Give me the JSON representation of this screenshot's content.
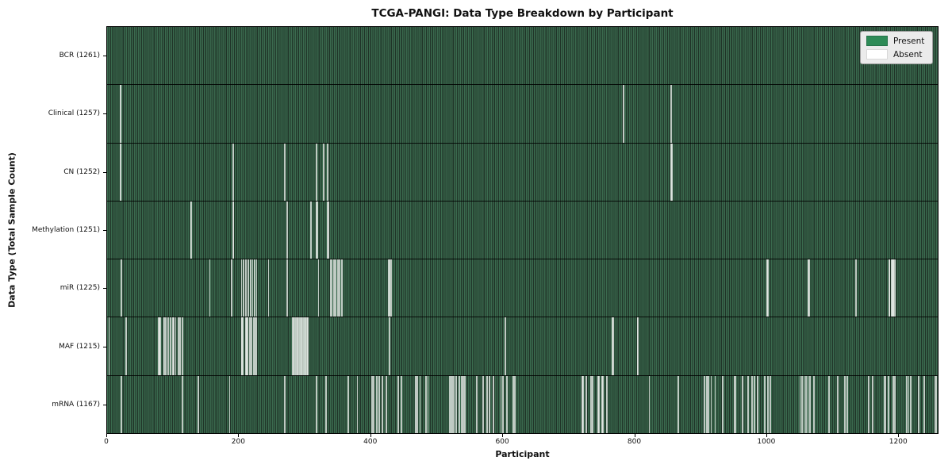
{
  "figure": {
    "title": "TCGA-PANGI: Data Type Breakdown by Participant",
    "xlabel": "Participant",
    "ylabel": "Data Type (Total Sample Count)"
  },
  "legend": {
    "items": [
      {
        "label": "Present",
        "color": "#2e8b57",
        "border": "#26734a"
      },
      {
        "label": "Absent",
        "color": "#ffffff",
        "border": "#d8d8d8"
      }
    ]
  },
  "chart_data": {
    "type": "heatmap",
    "title": "TCGA-PANGI: Data Type Breakdown by Participant",
    "xlabel": "Participant",
    "ylabel": "Data Type (Total Sample Count)",
    "x_ticks": [
      0,
      200,
      400,
      600,
      800,
      1000,
      1200
    ],
    "x_range": [
      0,
      1261
    ],
    "n_participants": 1261,
    "present_color": "#2e8b57",
    "absent_color": "#ffffff",
    "legend_position": "upper right",
    "grid": false,
    "rows": [
      {
        "label": "BCR (1261)",
        "data_type": "BCR",
        "sample_count": 1261,
        "absent_participants": []
      },
      {
        "label": "Clinical (1257)",
        "data_type": "Clinical",
        "sample_count": 1257,
        "absent_participants": [
          19,
          20,
          783,
          855
        ]
      },
      {
        "label": "CN (1252)",
        "data_type": "CN",
        "sample_count": 1252,
        "absent_participants": [
          19,
          20,
          190,
          269,
          317,
          328,
          334,
          855,
          856
        ]
      },
      {
        "label": "Methylation (1251)",
        "data_type": "Methylation",
        "sample_count": 1251,
        "absent_participants": [
          126,
          127,
          190,
          191,
          272,
          308,
          317,
          318,
          334,
          335
        ]
      },
      {
        "label": "miR (1225)",
        "data_type": "miR",
        "sample_count": 1225,
        "absent_participants": [
          21,
          155,
          188,
          203,
          206,
          210,
          213,
          217,
          220,
          223,
          226,
          244,
          272,
          320,
          338,
          340,
          343,
          346,
          349,
          352,
          355,
          426,
          428,
          430,
          1001,
          1002,
          1064,
          1065,
          1136,
          1186,
          1187,
          1190,
          1191,
          1192,
          1193,
          1195
        ]
      },
      {
        "label": "MAF (1215)",
        "data_type": "MAF",
        "sample_count": 1215,
        "absent_participants": [
          2,
          28,
          77,
          78,
          80,
          85,
          86,
          88,
          92,
          95,
          99,
          100,
          103,
          107,
          110,
          113,
          203,
          204,
          205,
          210,
          211,
          212,
          216,
          218,
          222,
          224,
          226,
          281,
          282,
          284,
          287,
          288,
          290,
          293,
          294,
          296,
          299,
          300,
          302,
          304,
          428,
          604,
          766,
          767,
          804,
          805
        ]
      },
      {
        "label": "mRNA (1167)",
        "data_type": "mRNA",
        "sample_count": 1167,
        "absent_participants": [
          21,
          113,
          137,
          185,
          269,
          317,
          331,
          365,
          379,
          401,
          404,
          408,
          412,
          417,
          423,
          441,
          446,
          467,
          470,
          474,
          483,
          486,
          519,
          521,
          523,
          525,
          529,
          534,
          537,
          540,
          542,
          560,
          570,
          576,
          579,
          585,
          597,
          600,
          606,
          616,
          618,
          720,
          722,
          726,
          734,
          736,
          744,
          746,
          750,
          752,
          758,
          822,
          866,
          906,
          909,
          912,
          916,
          922,
          934,
          951,
          953,
          964,
          972,
          978,
          982,
          987,
          997,
          1002,
          1006,
          1051,
          1054,
          1057,
          1060,
          1063,
          1066,
          1072,
          1095,
          1108,
          1119,
          1123,
          1155,
          1161,
          1179,
          1181,
          1185,
          1192,
          1195,
          1213,
          1216,
          1219,
          1231,
          1239,
          1256,
          1258
        ]
      }
    ]
  }
}
